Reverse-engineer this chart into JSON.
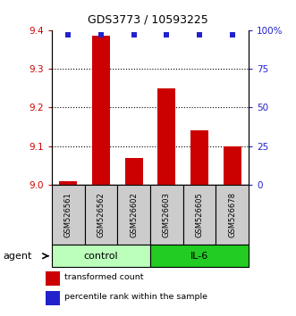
{
  "title": "GDS3773 / 10593225",
  "samples": [
    "GSM526561",
    "GSM526562",
    "GSM526602",
    "GSM526603",
    "GSM526605",
    "GSM526678"
  ],
  "bar_values": [
    9.01,
    9.385,
    9.07,
    9.25,
    9.14,
    9.1
  ],
  "percentile_values": [
    97,
    97,
    97,
    97,
    97,
    97
  ],
  "ylim_left": [
    9.0,
    9.4
  ],
  "ylim_right": [
    0,
    100
  ],
  "yticks_left": [
    9.0,
    9.1,
    9.2,
    9.3,
    9.4
  ],
  "yticks_right": [
    0,
    25,
    50,
    75,
    100
  ],
  "ytick_labels_right": [
    "0",
    "25",
    "50",
    "75",
    "100%"
  ],
  "bar_color": "#cc0000",
  "dot_color": "#2222cc",
  "control_color": "#bbffbb",
  "il6_color": "#22cc22",
  "agent_label": "agent",
  "legend_items": [
    {
      "label": "transformed count",
      "color": "#cc0000"
    },
    {
      "label": "percentile rank within the sample",
      "color": "#2222cc"
    }
  ],
  "left_axis_color": "#cc0000",
  "right_axis_color": "#2222cc",
  "sample_area_color": "#cccccc",
  "bar_baseline": 9.0,
  "bar_width": 0.55
}
